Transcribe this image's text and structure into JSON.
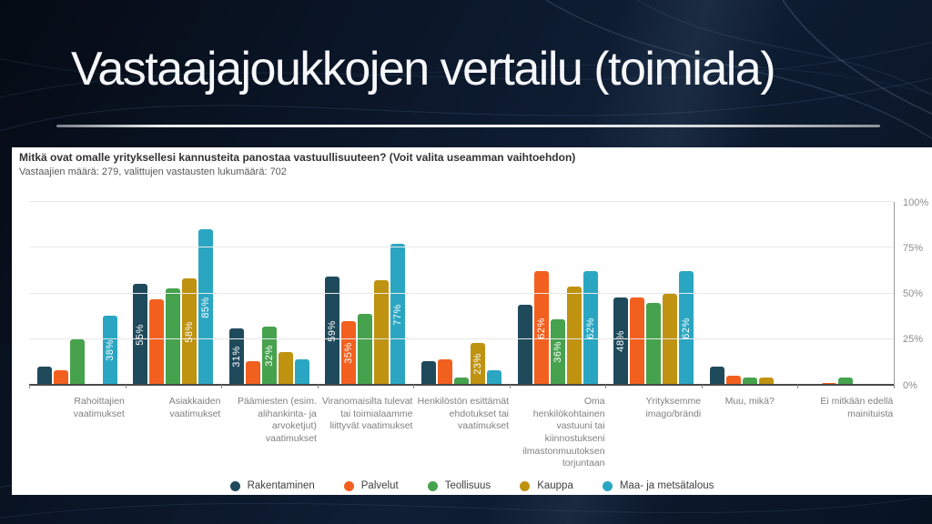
{
  "slide": {
    "title": "Vastaajajoukkojen vertailu (toimiala)"
  },
  "chart": {
    "title": "Mitkä ovat omalle yrityksellesi kannusteita panostaa vastuullisuuteen? (Voit valita useamman vaihtoehdon)",
    "subtitle": "Vastaajien määrä: 279, valittujen vastausten lukumäärä: 702"
  },
  "chart_data": {
    "type": "bar",
    "title": "Mitkä ovat omalle yrityksellesi kannusteita panostaa vastuullisuuteen? (Voit valita useamman vaihtoehdon)",
    "subtitle": "Vastaajien määrä: 279, valittujen vastausten lukumäärä: 702",
    "categories": [
      "Rahoittajien vaatimukset",
      "Asiakkaiden vaatimukset",
      "Päämiesten (esim. alihankinta- ja arvoketjut) vaatimukset",
      "Viranomaisilta tulevat tai toimialaamme liittyvät vaatimukset",
      "Henkilöstön esittämät ehdotukset tai vaatimukset",
      "Oma henkilökohtainen vastuuni tai kiinnostukseni ilmastonmuutoksen torjuntaan",
      "Yrityksemme imago/brändi",
      "Muu, mikä?",
      "Ei mitkään edellä mainituista"
    ],
    "series": [
      {
        "name": "Rakentaminen",
        "color": "#1f4a5c",
        "values": [
          10,
          55,
          31,
          59,
          13,
          44,
          48,
          10,
          0
        ],
        "labels": [
          null,
          "55%",
          "31%",
          "59%",
          null,
          null,
          "48%",
          null,
          null
        ]
      },
      {
        "name": "Palvelut",
        "color": "#f2601f",
        "values": [
          8,
          47,
          13,
          35,
          14,
          62,
          48,
          5,
          1
        ],
        "labels": [
          null,
          null,
          null,
          "35%",
          null,
          "62%",
          null,
          null,
          null
        ]
      },
      {
        "name": "Teollisuus",
        "color": "#46a24d",
        "values": [
          25,
          53,
          32,
          39,
          4,
          36,
          45,
          4,
          4
        ],
        "labels": [
          null,
          null,
          "32%",
          null,
          null,
          "36%",
          null,
          null,
          null
        ]
      },
      {
        "name": "Kauppa",
        "color": "#bf9210",
        "values": [
          0,
          58,
          18,
          57,
          23,
          54,
          50,
          4,
          0
        ],
        "labels": [
          null,
          "58%",
          null,
          null,
          "23%",
          null,
          null,
          null,
          null
        ]
      },
      {
        "name": "Maa- ja metsätalous",
        "color": "#2aa6c3",
        "values": [
          38,
          85,
          14,
          77,
          8,
          62,
          62,
          0,
          0
        ],
        "labels": [
          "38%",
          "85%",
          null,
          "77%",
          null,
          "62%",
          "62%",
          null,
          null
        ]
      }
    ],
    "yticks": [
      {
        "value": 0,
        "label": "0%"
      },
      {
        "value": 25,
        "label": "25%"
      },
      {
        "value": 50,
        "label": "50%"
      },
      {
        "value": 75,
        "label": "75%"
      },
      {
        "value": 100,
        "label": "100%"
      }
    ],
    "ylim": [
      0,
      100
    ],
    "grid": true,
    "legend_position": "bottom",
    "y_axis_side": "right"
  }
}
